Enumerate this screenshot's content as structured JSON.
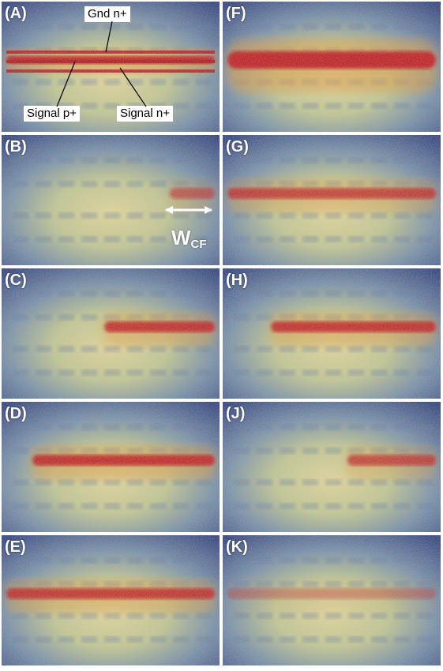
{
  "panels": [
    {
      "id": "A",
      "label": "(A)",
      "intensity": 1.0,
      "extent": [
        0.0,
        1.0
      ],
      "band": "thin"
    },
    {
      "id": "B",
      "label": "(B)",
      "intensity": 0.45,
      "extent": [
        0.75,
        1.0
      ],
      "band": "normal"
    },
    {
      "id": "C",
      "label": "(C)",
      "intensity": 0.85,
      "extent": [
        0.45,
        1.0
      ],
      "band": "normal"
    },
    {
      "id": "D",
      "label": "(D)",
      "intensity": 0.9,
      "extent": [
        0.12,
        1.0
      ],
      "band": "normal"
    },
    {
      "id": "E",
      "label": "(E)",
      "intensity": 0.8,
      "extent": [
        0.0,
        1.0
      ],
      "band": "normal"
    },
    {
      "id": "F",
      "label": "(F)",
      "intensity": 1.0,
      "extent": [
        0.0,
        1.0
      ],
      "band": "thick"
    },
    {
      "id": "G",
      "label": "(G)",
      "intensity": 0.7,
      "extent": [
        0.0,
        1.0
      ],
      "band": "normal"
    },
    {
      "id": "H",
      "label": "(H)",
      "intensity": 0.85,
      "extent": [
        0.2,
        1.0
      ],
      "band": "normal"
    },
    {
      "id": "J",
      "label": "(J)",
      "intensity": 0.65,
      "extent": [
        0.55,
        1.0
      ],
      "band": "normal"
    },
    {
      "id": "K",
      "label": "(K)",
      "intensity": 0.15,
      "extent": [
        0.0,
        1.0
      ],
      "band": "normal"
    }
  ],
  "annotations": {
    "gnd": "Gnd n+",
    "signal_p": "Signal p+",
    "signal_n": "Signal n+",
    "wcf_main": "W",
    "wcf_sub": "CF"
  },
  "colors": {
    "background_blue": "#2f4f8a",
    "field_yellow": "#c9c77a",
    "hot_red": "#b8282a",
    "panel_border": "#ffffff"
  }
}
